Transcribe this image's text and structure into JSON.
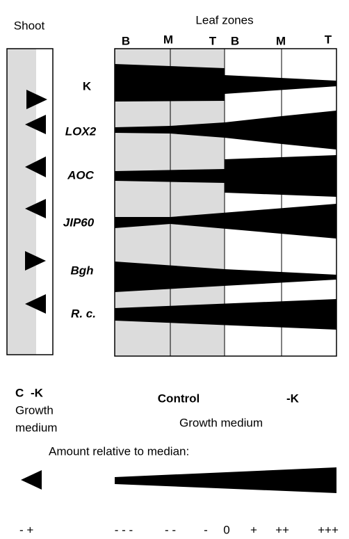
{
  "header": {
    "shoot": "Shoot",
    "leaf_zones": "Leaf zones"
  },
  "zones": [
    "B",
    "M",
    "T",
    "B",
    "M",
    "T"
  ],
  "rows": [
    "K",
    "LOX2",
    "AOC",
    "JIP60",
    "Bgh",
    "R. c."
  ],
  "shoot_conditions": {
    "control": "C",
    "minus_k": "-K",
    "caption": [
      "Growth",
      "medium"
    ]
  },
  "leaf_conditions": {
    "control": "Control",
    "minus_k": "-K",
    "caption": "Growth medium"
  },
  "legend": {
    "title": "Amount relative to median:",
    "shoot_scale": "- +",
    "leaf_scale": [
      "- - -",
      "- -",
      "-",
      "0",
      "+",
      "++",
      "+++"
    ]
  }
}
